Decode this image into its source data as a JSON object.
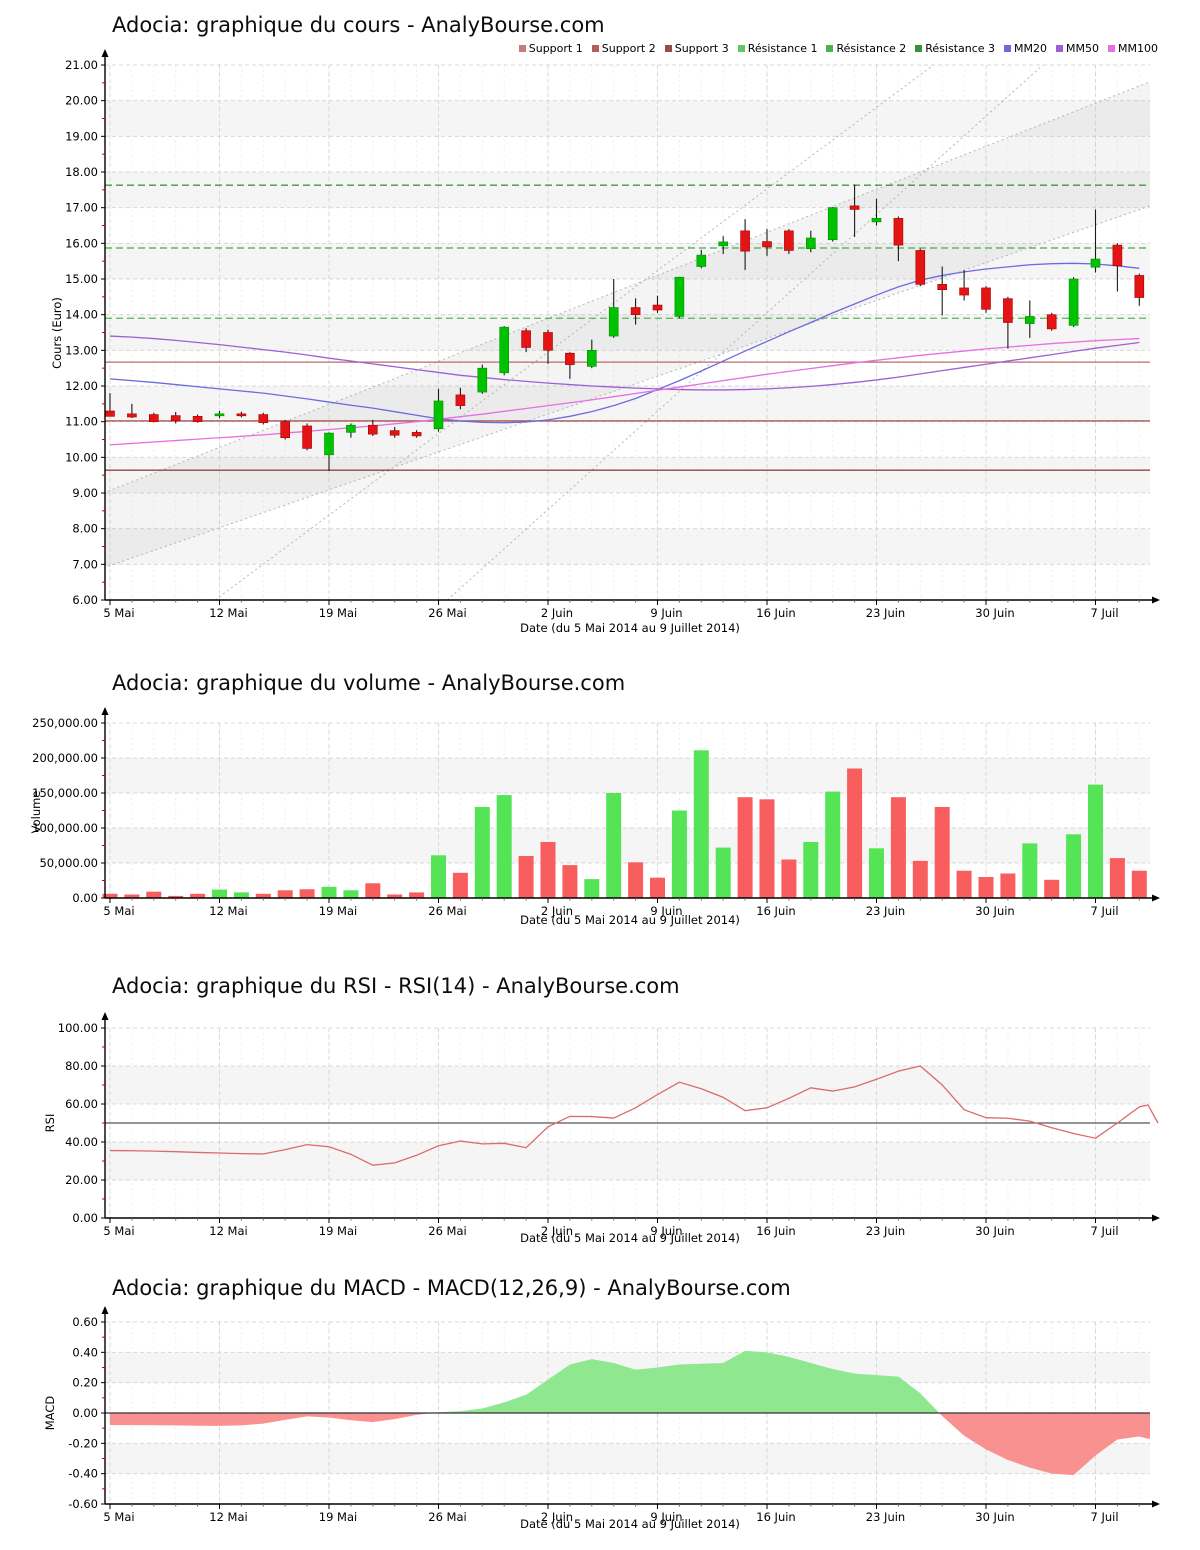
{
  "page_background": "#ffffff",
  "x_axis_tick_labels": [
    "5 Mai",
    "12 Mai",
    "19 Mai",
    "26 Mai",
    "2 Juin",
    "9 Juin",
    "16 Juin",
    "23 Juin",
    "30 Juin",
    "7 Juil"
  ],
  "chart_data": [
    {
      "type": "candlestick",
      "title": "Adocia: graphique du cours - AnalyBourse.com",
      "xlabel": "Date (du 5 Mai 2014 au 9 Juillet 2014)",
      "ylabel": "Cours (Euro)",
      "ylim": [
        6,
        21
      ],
      "y_tick_step": 1,
      "y_tick_labels": [
        "6.00",
        "7.00",
        "8.00",
        "9.00",
        "10.00",
        "11.00",
        "12.00",
        "13.00",
        "14.00",
        "15.00",
        "16.00",
        "17.00",
        "18.00",
        "19.00",
        "20.00",
        "21.00"
      ],
      "x_tick_labels": [
        "5 Mai",
        "12 Mai",
        "19 Mai",
        "26 Mai",
        "2 Juin",
        "9 Juin",
        "16 Juin",
        "23 Juin",
        "30 Juin",
        "7 Juil"
      ],
      "grid": true,
      "legend_position": "top-right",
      "legend": [
        {
          "label": "Support 1",
          "color": "#c97a7a"
        },
        {
          "label": "Support 2",
          "color": "#b25e5e"
        },
        {
          "label": "Support 3",
          "color": "#9a4a4a"
        },
        {
          "label": "Résistance 1",
          "color": "#63c763"
        },
        {
          "label": "Résistance 2",
          "color": "#4bb44b"
        },
        {
          "label": "Résistance 3",
          "color": "#359335"
        },
        {
          "label": "MM20",
          "color": "#6b6be0"
        },
        {
          "label": "MM50",
          "color": "#9e5fd6"
        },
        {
          "label": "MM100",
          "color": "#e86fe0"
        }
      ],
      "up_color": "#00c200",
      "down_color": "#e41414",
      "support_levels": [
        {
          "name": "Support 1",
          "value": 12.67,
          "color": "#b96a6a",
          "style": "solid"
        },
        {
          "name": "Support 2",
          "value": 11.02,
          "color": "#aa5555",
          "style": "solid"
        },
        {
          "name": "Support 3",
          "value": 9.64,
          "color": "#8f4747",
          "style": "solid"
        }
      ],
      "resistance_levels": [
        {
          "name": "Résistance 1",
          "value": 13.9,
          "color": "#58b858",
          "style": "dashed"
        },
        {
          "name": "Résistance 2",
          "value": 15.87,
          "color": "#4aab4a",
          "style": "dashed"
        },
        {
          "name": "Résistance 3",
          "value": 17.63,
          "color": "#3d9a3d",
          "style": "dashed"
        }
      ],
      "trend_channel": {
        "color": "#b5b5b5",
        "fill": "rgba(150,150,150,0.10)",
        "lines": [
          {
            "name": "channel-lower",
            "p1": [
              -0.3,
              6.9
            ],
            "p2": [
              48.2,
              17.2
            ]
          },
          {
            "name": "channel-upper",
            "p1": [
              -0.3,
              9.0
            ],
            "p2": [
              48.2,
              20.7
            ]
          },
          {
            "name": "steep-lower",
            "p1": [
              4.8,
              6.0
            ],
            "p2": [
              37.6,
              21.0
            ]
          },
          {
            "name": "steep-upper",
            "p1": [
              15.4,
              6.0
            ],
            "p2": [
              42.6,
              21.0
            ]
          }
        ]
      },
      "candles": [
        {
          "o": 11.3,
          "h": 11.8,
          "l": 11.15,
          "c": 11.15
        },
        {
          "o": 11.22,
          "h": 11.5,
          "l": 11.1,
          "c": 11.13
        },
        {
          "o": 11.2,
          "h": 11.25,
          "l": 10.98,
          "c": 11.0
        },
        {
          "o": 11.17,
          "h": 11.27,
          "l": 10.95,
          "c": 11.02
        },
        {
          "o": 11.15,
          "h": 11.2,
          "l": 10.97,
          "c": 11.0
        },
        {
          "o": 11.18,
          "h": 11.3,
          "l": 11.1,
          "c": 11.22
        },
        {
          "o": 11.22,
          "h": 11.28,
          "l": 11.12,
          "c": 11.18
        },
        {
          "o": 11.2,
          "h": 11.25,
          "l": 10.92,
          "c": 10.97
        },
        {
          "o": 11.0,
          "h": 11.05,
          "l": 10.5,
          "c": 10.55
        },
        {
          "o": 10.88,
          "h": 10.95,
          "l": 10.2,
          "c": 10.25
        },
        {
          "o": 10.07,
          "h": 10.7,
          "l": 9.62,
          "c": 10.68
        },
        {
          "o": 10.7,
          "h": 10.95,
          "l": 10.55,
          "c": 10.9
        },
        {
          "o": 10.9,
          "h": 11.05,
          "l": 10.6,
          "c": 10.65
        },
        {
          "o": 10.75,
          "h": 10.85,
          "l": 10.55,
          "c": 10.62
        },
        {
          "o": 10.7,
          "h": 10.76,
          "l": 10.55,
          "c": 10.6
        },
        {
          "o": 10.8,
          "h": 11.92,
          "l": 10.72,
          "c": 11.58
        },
        {
          "o": 11.75,
          "h": 11.95,
          "l": 11.35,
          "c": 11.45
        },
        {
          "o": 11.83,
          "h": 12.6,
          "l": 11.78,
          "c": 12.5
        },
        {
          "o": 12.37,
          "h": 13.68,
          "l": 12.3,
          "c": 13.65
        },
        {
          "o": 13.55,
          "h": 13.62,
          "l": 12.95,
          "c": 13.08
        },
        {
          "o": 13.5,
          "h": 13.58,
          "l": 12.62,
          "c": 13.0
        },
        {
          "o": 12.92,
          "h": 12.95,
          "l": 12.2,
          "c": 12.6
        },
        {
          "o": 12.55,
          "h": 13.3,
          "l": 12.5,
          "c": 13.0
        },
        {
          "o": 13.4,
          "h": 15.0,
          "l": 13.35,
          "c": 14.2
        },
        {
          "o": 14.2,
          "h": 14.46,
          "l": 13.72,
          "c": 14.0
        },
        {
          "o": 14.27,
          "h": 14.53,
          "l": 14.05,
          "c": 14.13
        },
        {
          "o": 13.95,
          "h": 15.06,
          "l": 13.9,
          "c": 15.05
        },
        {
          "o": 15.35,
          "h": 15.82,
          "l": 15.3,
          "c": 15.67
        },
        {
          "o": 15.93,
          "h": 16.2,
          "l": 15.7,
          "c": 16.04
        },
        {
          "o": 16.35,
          "h": 16.68,
          "l": 15.25,
          "c": 15.78
        },
        {
          "o": 16.05,
          "h": 16.4,
          "l": 15.65,
          "c": 15.9
        },
        {
          "o": 16.35,
          "h": 16.4,
          "l": 15.7,
          "c": 15.8
        },
        {
          "o": 15.85,
          "h": 16.35,
          "l": 15.75,
          "c": 16.15
        },
        {
          "o": 16.1,
          "h": 17.02,
          "l": 16.05,
          "c": 17.0
        },
        {
          "o": 17.05,
          "h": 17.65,
          "l": 16.18,
          "c": 16.95
        },
        {
          "o": 16.6,
          "h": 17.25,
          "l": 16.5,
          "c": 16.7
        },
        {
          "o": 16.7,
          "h": 16.75,
          "l": 15.5,
          "c": 15.95
        },
        {
          "o": 15.8,
          "h": 15.85,
          "l": 14.8,
          "c": 14.85
        },
        {
          "o": 14.85,
          "h": 15.35,
          "l": 13.98,
          "c": 14.7
        },
        {
          "o": 14.75,
          "h": 15.25,
          "l": 14.4,
          "c": 14.55
        },
        {
          "o": 14.75,
          "h": 14.8,
          "l": 14.05,
          "c": 14.15
        },
        {
          "o": 14.45,
          "h": 14.5,
          "l": 13.05,
          "c": 13.78
        },
        {
          "o": 13.75,
          "h": 14.4,
          "l": 13.35,
          "c": 13.95
        },
        {
          "o": 14.0,
          "h": 14.05,
          "l": 13.55,
          "c": 13.6
        },
        {
          "o": 13.7,
          "h": 15.05,
          "l": 13.65,
          "c": 15.0
        },
        {
          "o": 15.33,
          "h": 16.95,
          "l": 15.18,
          "c": 15.56
        },
        {
          "o": 15.95,
          "h": 16.0,
          "l": 14.65,
          "c": 15.37
        },
        {
          "o": 15.1,
          "h": 15.15,
          "l": 14.25,
          "c": 14.48
        }
      ],
      "series": [
        {
          "name": "MM20",
          "color": "#6b6be0",
          "values": [
            12.2,
            12.15,
            12.1,
            12.04,
            11.98,
            11.92,
            11.86,
            11.8,
            11.72,
            11.64,
            11.55,
            11.46,
            11.38,
            11.28,
            11.18,
            11.08,
            11.02,
            10.98,
            10.97,
            10.99,
            11.05,
            11.15,
            11.28,
            11.45,
            11.65,
            11.9,
            12.15,
            12.42,
            12.7,
            12.98,
            13.25,
            13.52,
            13.78,
            14.05,
            14.3,
            14.55,
            14.78,
            14.97,
            15.1,
            15.2,
            15.28,
            15.34,
            15.4,
            15.43,
            15.44,
            15.42,
            15.37,
            15.3
          ]
        },
        {
          "name": "MM50",
          "color": "#9e5fd6",
          "values": [
            13.4,
            13.37,
            13.33,
            13.28,
            13.22,
            13.16,
            13.09,
            13.02,
            12.95,
            12.87,
            12.78,
            12.7,
            12.62,
            12.54,
            12.46,
            12.38,
            12.3,
            12.24,
            12.18,
            12.13,
            12.08,
            12.04,
            12.0,
            11.97,
            11.94,
            11.92,
            11.9,
            11.89,
            11.89,
            11.9,
            11.92,
            11.95,
            11.99,
            12.04,
            12.1,
            12.17,
            12.25,
            12.34,
            12.43,
            12.52,
            12.61,
            12.7,
            12.79,
            12.88,
            12.97,
            13.06,
            13.14,
            13.22
          ]
        },
        {
          "name": "MM100",
          "color": "#e86fe0",
          "values": [
            10.35,
            10.39,
            10.43,
            10.47,
            10.51,
            10.55,
            10.59,
            10.63,
            10.68,
            10.73,
            10.78,
            10.83,
            10.88,
            10.94,
            11.0,
            11.07,
            11.14,
            11.21,
            11.29,
            11.37,
            11.45,
            11.53,
            11.61,
            11.7,
            11.79,
            11.88,
            11.97,
            12.06,
            12.15,
            12.24,
            12.33,
            12.41,
            12.49,
            12.57,
            12.65,
            12.72,
            12.79,
            12.86,
            12.92,
            12.98,
            13.04,
            13.09,
            13.14,
            13.19,
            13.23,
            13.27,
            13.3,
            13.33
          ]
        }
      ]
    },
    {
      "type": "bar",
      "title": "Adocia: graphique du volume - AnalyBourse.com",
      "xlabel": "Date (du 5 Mai 2014 au 9 Juillet 2014)",
      "ylabel": "Volume",
      "ylim": [
        0,
        250000
      ],
      "y_tick_labels": [
        "0.00",
        "50,000.00",
        "100,000.00",
        "150,000.00",
        "200,000.00",
        "250,000.00"
      ],
      "x_tick_labels": [
        "5 Mai",
        "12 Mai",
        "19 Mai",
        "26 Mai",
        "2 Juin",
        "9 Juin",
        "16 Juin",
        "23 Juin",
        "30 Juin",
        "7 Juil"
      ],
      "up_color": "#55e455",
      "down_color": "#f85e5e",
      "values": [
        6000,
        5000,
        9000,
        3000,
        6000,
        12000,
        8000,
        6000,
        11000,
        12500,
        16000,
        11000,
        21000,
        5000,
        8000,
        61000,
        36000,
        130000,
        147000,
        60000,
        80000,
        47000,
        27000,
        150000,
        51000,
        29000,
        125000,
        211000,
        72000,
        144000,
        141000,
        55000,
        80000,
        152000,
        185000,
        71000,
        144000,
        53000,
        130000,
        39000,
        30000,
        35000,
        78000,
        26000,
        91000,
        162000,
        57000,
        39000
      ],
      "directions": [
        "d",
        "d",
        "d",
        "d",
        "d",
        "u",
        "u",
        "d",
        "d",
        "d",
        "u",
        "u",
        "d",
        "d",
        "d",
        "u",
        "d",
        "u",
        "u",
        "d",
        "d",
        "d",
        "u",
        "u",
        "d",
        "d",
        "u",
        "u",
        "u",
        "d",
        "d",
        "d",
        "u",
        "u",
        "d",
        "u",
        "d",
        "d",
        "d",
        "d",
        "d",
        "d",
        "u",
        "d",
        "u",
        "u",
        "d",
        "d"
      ]
    },
    {
      "type": "line",
      "title": "Adocia: graphique du RSI - RSI(14) - AnalyBourse.com",
      "xlabel": "Date (du 5 Mai 2014 au 9 Juillet 2014)",
      "ylabel": "RSI",
      "ylim": [
        0,
        100
      ],
      "y_tick_labels": [
        "0.00",
        "20.00",
        "40.00",
        "60.00",
        "80.00",
        "100.00"
      ],
      "x_tick_labels": [
        "5 Mai",
        "12 Mai",
        "19 Mai",
        "26 Mai",
        "2 Juin",
        "9 Juin",
        "16 Juin",
        "23 Juin",
        "30 Juin",
        "7 Juil"
      ],
      "line_color": "#dd6a6a",
      "reference_line": {
        "value": 50,
        "color": "#555555"
      },
      "values": [
        35.5,
        35.4,
        35.2,
        34.9,
        34.5,
        34.2,
        33.9,
        33.7,
        36.0,
        38.6,
        37.5,
        33.5,
        27.8,
        29.0,
        33.0,
        38.0,
        40.5,
        39.0,
        39.3,
        37.0,
        48.0,
        53.5,
        53.4,
        52.6,
        58.0,
        65.0,
        71.5,
        68.0,
        63.5,
        56.5,
        58.0,
        63.0,
        68.5,
        66.8,
        69.0,
        73.0,
        77.3,
        80.0,
        70.0,
        57.0,
        52.8,
        52.5,
        51.0,
        47.5,
        44.5,
        42.0,
        50.0,
        58.5
      ],
      "tail_values": [
        59.5,
        50.0
      ]
    },
    {
      "type": "area",
      "title": "Adocia: graphique du MACD - MACD(12,26,9) - AnalyBourse.com",
      "xlabel": "Date (du 5 Mai 2014 au 9 Juillet 2014)",
      "ylabel": "MACD",
      "ylim": [
        -0.6,
        0.6
      ],
      "y_tick_labels": [
        "-0.60",
        "-0.40",
        "-0.20",
        "0.00",
        "0.20",
        "0.40",
        "0.60"
      ],
      "x_tick_labels": [
        "5 Mai",
        "12 Mai",
        "19 Mai",
        "26 Mai",
        "2 Juin",
        "9 Juin",
        "16 Juin",
        "23 Juin",
        "30 Juin",
        "7 Juil"
      ],
      "positive_color": "#8fe88f",
      "negative_color": "#fa9191",
      "zero_line_color": "#333333",
      "values": [
        -0.08,
        -0.08,
        -0.081,
        -0.082,
        -0.084,
        -0.085,
        -0.082,
        -0.07,
        -0.045,
        -0.022,
        -0.03,
        -0.048,
        -0.06,
        -0.04,
        -0.012,
        0.005,
        0.012,
        0.03,
        0.07,
        0.12,
        0.22,
        0.32,
        0.355,
        0.33,
        0.285,
        0.3,
        0.32,
        0.325,
        0.33,
        0.41,
        0.4,
        0.37,
        0.33,
        0.29,
        0.26,
        0.25,
        0.24,
        0.13,
        -0.02,
        -0.15,
        -0.24,
        -0.31,
        -0.36,
        -0.4,
        -0.41,
        -0.28,
        -0.175,
        -0.155
      ],
      "tail_values": [
        -0.17,
        -0.17
      ]
    }
  ]
}
